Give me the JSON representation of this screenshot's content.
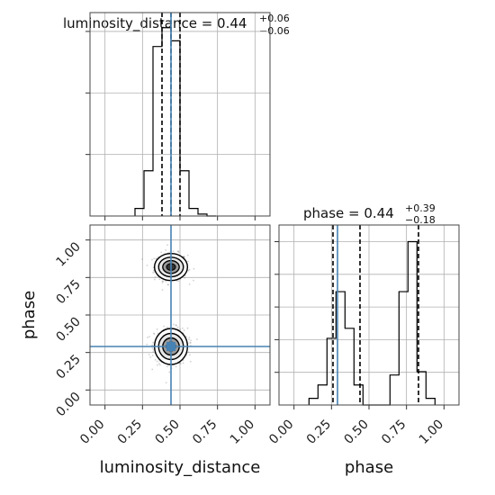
{
  "chart_data": [
    {
      "type": "histogram",
      "panel": "top-left",
      "title": {
        "base": "luminosity_distance = 0.44",
        "sup": "+0.06",
        "sub": "−0.06"
      },
      "x_range": [
        -0.1,
        1.1
      ],
      "y_range": [
        0,
        1.08
      ],
      "xticks": [
        0,
        0.25,
        0.5,
        0.75,
        1.0
      ],
      "ytick_count": 3,
      "grid": true,
      "bins": {
        "edges": [
          0.2,
          0.26,
          0.32,
          0.38,
          0.44,
          0.5,
          0.56,
          0.62,
          0.68,
          0.74
        ],
        "heights": [
          0.04,
          0.24,
          0.9,
          1.0,
          0.93,
          0.24,
          0.04,
          0.01,
          0.0
        ]
      },
      "truth": 0.44,
      "quantiles": [
        0.38,
        0.44,
        0.5
      ]
    },
    {
      "type": "histogram",
      "panel": "bottom-right",
      "title": {
        "base": "phase = 0.44",
        "sup": "+0.39",
        "sub": "−0.18"
      },
      "x_range": [
        -0.1,
        1.1
      ],
      "y_range": [
        0,
        1.08
      ],
      "xticks": [
        0,
        0.25,
        0.5,
        0.75,
        1.0
      ],
      "xtick_labels": [
        "0.00",
        "0.25",
        "0.50",
        "0.75",
        "1.00"
      ],
      "xlabel": "phase",
      "ytick_count": 5,
      "grid": true,
      "bins": {
        "edges": [
          0.1,
          0.16,
          0.22,
          0.28,
          0.34,
          0.4,
          0.46,
          0.52,
          0.58,
          0.64,
          0.7,
          0.76,
          0.82,
          0.88,
          0.94
        ],
        "heights": [
          0.04,
          0.12,
          0.4,
          0.68,
          0.46,
          0.12,
          0.0,
          0.0,
          0.0,
          0.18,
          0.68,
          0.98,
          0.2,
          0.04
        ]
      },
      "truth": 0.29,
      "quantiles": [
        0.26,
        0.44,
        0.83
      ]
    },
    {
      "type": "scatter",
      "panel": "bottom-left",
      "x_range": [
        -0.1,
        1.1
      ],
      "y_range": [
        -0.1,
        1.1
      ],
      "xticks": [
        0,
        0.25,
        0.5,
        0.75,
        1.0
      ],
      "xtick_labels": [
        "0.00",
        "0.25",
        "0.50",
        "0.75",
        "1.00"
      ],
      "yticks": [
        0,
        0.25,
        0.5,
        0.75,
        1.0
      ],
      "ytick_labels": [
        "0.00",
        "0.25",
        "0.50",
        "0.75",
        "1.00"
      ],
      "xlabel": "luminosity_distance",
      "ylabel": "phase",
      "grid": true,
      "clusters": [
        {
          "x": 0.44,
          "y": 0.82,
          "sx": 0.055,
          "sy": 0.045,
          "n": 400
        },
        {
          "x": 0.44,
          "y": 0.29,
          "sx": 0.055,
          "sy": 0.06,
          "n": 500
        }
      ],
      "truth": {
        "x": 0.44,
        "y": 0.29
      }
    }
  ],
  "colors": {
    "truth": "#4682b4",
    "hist": "#000000",
    "grid": "#b0b0b0",
    "points": "#7f7f7f"
  }
}
